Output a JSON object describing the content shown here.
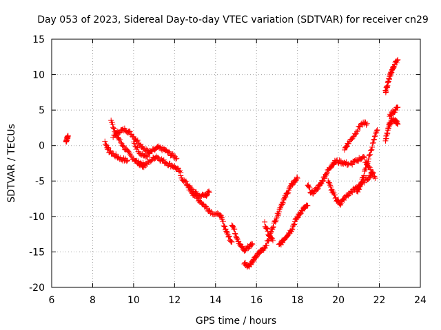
{
  "chart_data": {
    "type": "scatter",
    "title": "Day 053 of 2023, Sidereal Day-to-day VTEC variation (SDTVAR) for receiver cn29",
    "xlabel": "GPS time / hours",
    "ylabel": "SDTVAR / TECUs",
    "xlim": [
      6,
      24
    ],
    "ylim": [
      -20,
      15
    ],
    "xticks": [
      6,
      8,
      10,
      12,
      14,
      16,
      18,
      20,
      22,
      24
    ],
    "yticks": [
      -20,
      -15,
      -10,
      -5,
      0,
      5,
      10,
      15
    ],
    "grid": true,
    "marker": "+",
    "color": "#ff0000",
    "segments": [
      [
        [
          6.7,
          0.6
        ],
        [
          6.75,
          1.0
        ],
        [
          6.8,
          1.4
        ]
      ],
      [
        [
          8.6,
          0.5
        ],
        [
          8.8,
          -0.8
        ],
        [
          9.1,
          -1.4
        ],
        [
          9.4,
          -1.9
        ],
        [
          9.7,
          -2.1
        ]
      ],
      [
        [
          8.9,
          3.5
        ],
        [
          9.1,
          2.0
        ],
        [
          9.3,
          0.8
        ],
        [
          9.6,
          -0.5
        ],
        [
          9.9,
          -1.6
        ],
        [
          10.2,
          -2.4
        ],
        [
          10.5,
          -2.7
        ]
      ],
      [
        [
          9.0,
          1.2
        ],
        [
          9.3,
          2.0
        ],
        [
          9.6,
          2.3
        ],
        [
          9.9,
          1.6
        ],
        [
          10.2,
          0.6
        ],
        [
          10.5,
          -0.4
        ],
        [
          10.8,
          -1.0
        ]
      ],
      [
        [
          10.0,
          0.4
        ],
        [
          10.3,
          -1.0
        ],
        [
          10.6,
          -1.6
        ],
        [
          10.9,
          -0.8
        ],
        [
          11.2,
          -0.3
        ],
        [
          11.5,
          -0.6
        ],
        [
          11.8,
          -1.2
        ],
        [
          12.1,
          -1.8
        ]
      ],
      [
        [
          10.2,
          -2.4
        ],
        [
          10.5,
          -2.9
        ],
        [
          10.8,
          -2.2
        ],
        [
          11.1,
          -1.5
        ],
        [
          11.4,
          -2.1
        ],
        [
          11.7,
          -2.6
        ],
        [
          12.0,
          -3.0
        ],
        [
          12.3,
          -3.8
        ]
      ],
      [
        [
          12.3,
          -4.4
        ],
        [
          12.6,
          -5.4
        ],
        [
          12.9,
          -6.4
        ],
        [
          13.2,
          -7.1
        ],
        [
          13.5,
          -7.0
        ],
        [
          13.7,
          -6.6
        ]
      ],
      [
        [
          12.6,
          -5.6
        ],
        [
          12.9,
          -6.8
        ],
        [
          13.2,
          -7.7
        ],
        [
          13.5,
          -8.6
        ],
        [
          13.8,
          -9.4
        ],
        [
          14.2,
          -9.9
        ]
      ],
      [
        [
          14.2,
          -9.6
        ],
        [
          14.4,
          -11.1
        ],
        [
          14.6,
          -12.6
        ],
        [
          14.8,
          -13.6
        ]
      ],
      [
        [
          14.8,
          -11.0
        ],
        [
          15.0,
          -12.6
        ],
        [
          15.2,
          -14.0
        ],
        [
          15.4,
          -14.8
        ],
        [
          15.6,
          -14.3
        ],
        [
          15.8,
          -13.9
        ]
      ],
      [
        [
          15.4,
          -16.5
        ],
        [
          15.6,
          -17.0
        ],
        [
          15.8,
          -16.4
        ],
        [
          16.0,
          -15.6
        ],
        [
          16.2,
          -14.9
        ],
        [
          16.4,
          -14.4
        ],
        [
          16.6,
          -13.2
        ],
        [
          16.8,
          -11.4
        ],
        [
          17.0,
          -10.0
        ],
        [
          17.2,
          -8.4
        ],
        [
          17.4,
          -7.3
        ],
        [
          17.6,
          -6.1
        ],
        [
          17.8,
          -5.2
        ],
        [
          18.0,
          -4.6
        ]
      ],
      [
        [
          16.4,
          -11.0
        ],
        [
          16.6,
          -12.6
        ],
        [
          16.8,
          -13.4
        ]
      ],
      [
        [
          17.1,
          -14.1
        ],
        [
          17.3,
          -13.4
        ],
        [
          17.5,
          -12.6
        ],
        [
          17.7,
          -11.9
        ],
        [
          17.9,
          -10.6
        ],
        [
          18.1,
          -9.6
        ],
        [
          18.3,
          -8.9
        ],
        [
          18.5,
          -8.5
        ]
      ],
      [
        [
          18.5,
          -5.6
        ],
        [
          18.7,
          -6.8
        ],
        [
          18.9,
          -6.2
        ],
        [
          19.1,
          -5.6
        ],
        [
          19.3,
          -4.5
        ],
        [
          19.5,
          -3.5
        ],
        [
          19.7,
          -2.6
        ],
        [
          19.9,
          -2.2
        ],
        [
          20.2,
          -2.4
        ],
        [
          20.5,
          -2.6
        ]
      ],
      [
        [
          19.5,
          -5.0
        ],
        [
          19.7,
          -6.5
        ],
        [
          19.9,
          -7.6
        ],
        [
          20.1,
          -8.2
        ],
        [
          20.3,
          -7.4
        ],
        [
          20.6,
          -6.6
        ],
        [
          20.9,
          -5.9
        ],
        [
          21.2,
          -5.2
        ],
        [
          21.5,
          -4.4
        ],
        [
          21.7,
          -3.8
        ]
      ],
      [
        [
          20.3,
          -0.5
        ],
        [
          20.5,
          0.4
        ],
        [
          20.8,
          1.6
        ],
        [
          21.1,
          3.0
        ],
        [
          21.4,
          3.1
        ]
      ],
      [
        [
          20.6,
          -2.6
        ],
        [
          20.9,
          -2.1
        ],
        [
          21.2,
          -1.6
        ],
        [
          21.5,
          -3.0
        ],
        [
          21.8,
          -4.6
        ]
      ],
      [
        [
          20.9,
          -6.6
        ],
        [
          21.1,
          -5.4
        ],
        [
          21.3,
          -3.6
        ],
        [
          21.5,
          -1.6
        ],
        [
          21.7,
          0.4
        ],
        [
          21.9,
          2.2
        ]
      ],
      [
        [
          22.3,
          0.8
        ],
        [
          22.4,
          2.0
        ],
        [
          22.5,
          3.1
        ],
        [
          22.6,
          3.6
        ],
        [
          22.8,
          3.4
        ],
        [
          22.9,
          3.0
        ]
      ],
      [
        [
          22.3,
          7.6
        ],
        [
          22.4,
          8.6
        ],
        [
          22.5,
          9.6
        ],
        [
          22.6,
          10.5
        ],
        [
          22.7,
          11.2
        ],
        [
          22.9,
          12.1
        ]
      ],
      [
        [
          22.5,
          4.3
        ],
        [
          22.7,
          4.8
        ],
        [
          22.9,
          5.4
        ]
      ]
    ]
  }
}
